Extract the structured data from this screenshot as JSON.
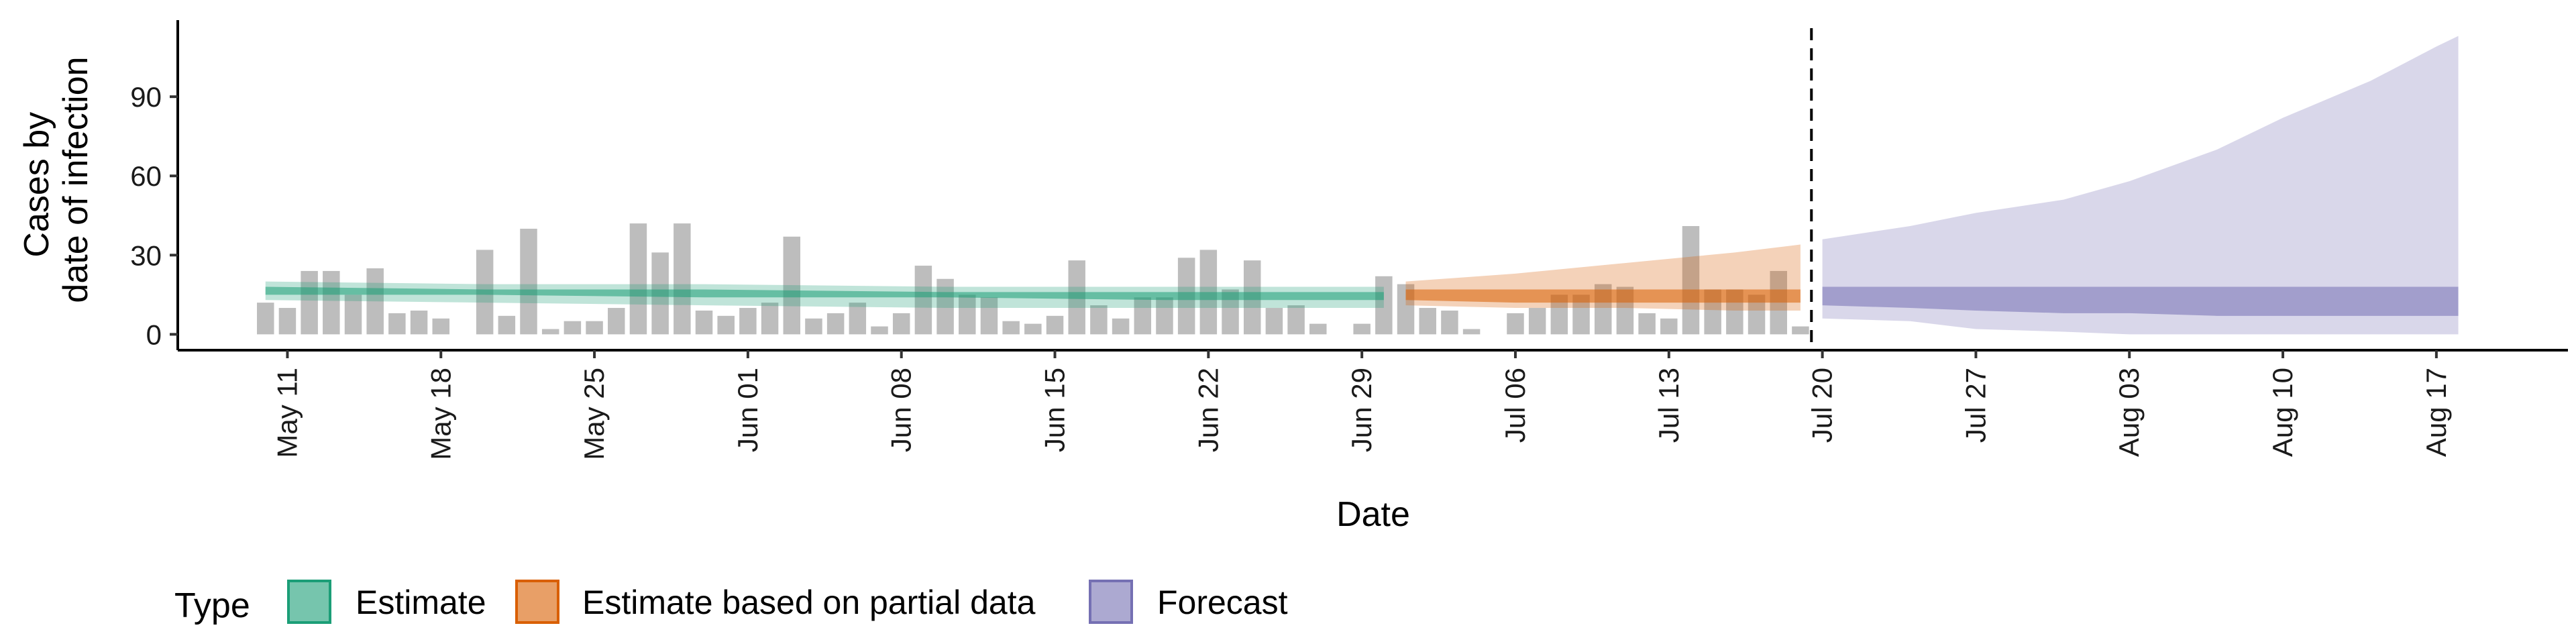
{
  "chart_data": {
    "type": "bar",
    "xlabel": "Date",
    "ylabel": [
      "Cases by",
      "date of infection"
    ],
    "ylim": [
      -6,
      119
    ],
    "xlim": [
      "2020-05-06",
      "2020-08-23"
    ],
    "y_ticks": [
      0,
      30,
      60,
      90
    ],
    "x_ticks": [
      {
        "date": "2020-05-11",
        "label": "May 11"
      },
      {
        "date": "2020-05-18",
        "label": "May 18"
      },
      {
        "date": "2020-05-25",
        "label": "May 25"
      },
      {
        "date": "2020-06-01",
        "label": "Jun 01"
      },
      {
        "date": "2020-06-08",
        "label": "Jun 08"
      },
      {
        "date": "2020-06-15",
        "label": "Jun 15"
      },
      {
        "date": "2020-06-22",
        "label": "Jun 22"
      },
      {
        "date": "2020-06-29",
        "label": "Jun 29"
      },
      {
        "date": "2020-07-06",
        "label": "Jul 06"
      },
      {
        "date": "2020-07-13",
        "label": "Jul 13"
      },
      {
        "date": "2020-07-20",
        "label": "Jul 20"
      },
      {
        "date": "2020-07-27",
        "label": "Jul 27"
      },
      {
        "date": "2020-08-03",
        "label": "Aug 03"
      },
      {
        "date": "2020-08-10",
        "label": "Aug 10"
      },
      {
        "date": "2020-08-17",
        "label": "Aug 17"
      }
    ],
    "grid": false,
    "legend_position": "bottom",
    "legend": {
      "title": "Type",
      "items": [
        {
          "label": "Estimate",
          "fill": "#1b9e77",
          "stroke": "#1b9e77"
        },
        {
          "label": "Estimate based on partial data",
          "fill": "#d95f02",
          "stroke": "#d95f02"
        },
        {
          "label": "Forecast",
          "fill": "#7570b3",
          "stroke": "#7570b3"
        }
      ]
    },
    "bar_color": "#bdbdbd",
    "reported_cases": {
      "dates": [
        "2020-05-10",
        "2020-05-11",
        "2020-05-12",
        "2020-05-13",
        "2020-05-14",
        "2020-05-15",
        "2020-05-16",
        "2020-05-17",
        "2020-05-18",
        "2020-05-19",
        "2020-05-20",
        "2020-05-21",
        "2020-05-22",
        "2020-05-23",
        "2020-05-24",
        "2020-05-25",
        "2020-05-26",
        "2020-05-27",
        "2020-05-28",
        "2020-05-29",
        "2020-05-30",
        "2020-05-31",
        "2020-06-01",
        "2020-06-02",
        "2020-06-03",
        "2020-06-04",
        "2020-06-05",
        "2020-06-06",
        "2020-06-07",
        "2020-06-08",
        "2020-06-09",
        "2020-06-10",
        "2020-06-11",
        "2020-06-12",
        "2020-06-13",
        "2020-06-14",
        "2020-06-15",
        "2020-06-16",
        "2020-06-17",
        "2020-06-18",
        "2020-06-19",
        "2020-06-20",
        "2020-06-21",
        "2020-06-22",
        "2020-06-23",
        "2020-06-24",
        "2020-06-25",
        "2020-06-26",
        "2020-06-27",
        "2020-06-28",
        "2020-06-29",
        "2020-06-30",
        "2020-07-01",
        "2020-07-02",
        "2020-07-03",
        "2020-07-04",
        "2020-07-05",
        "2020-07-06",
        "2020-07-07",
        "2020-07-08",
        "2020-07-09",
        "2020-07-10",
        "2020-07-11",
        "2020-07-12",
        "2020-07-13",
        "2020-07-14",
        "2020-07-15",
        "2020-07-16",
        "2020-07-17",
        "2020-07-18",
        "2020-07-19"
      ],
      "values": [
        12,
        10,
        24,
        24,
        15,
        25,
        8,
        9,
        6,
        0,
        32,
        7,
        40,
        2,
        5,
        5,
        10,
        42,
        31,
        42,
        9,
        7,
        10,
        12,
        37,
        6,
        8,
        12,
        3,
        8,
        26,
        21,
        15,
        14,
        5,
        4,
        7,
        28,
        11,
        6,
        14,
        14,
        29,
        32,
        17,
        28,
        10,
        11,
        4,
        0,
        4,
        22,
        19,
        10,
        9,
        2,
        0,
        8,
        10,
        15,
        15,
        19,
        18,
        8,
        6,
        41,
        17,
        17,
        15,
        24,
        3
      ]
    },
    "estimate": {
      "dates": [
        "2020-05-10",
        "2020-05-20",
        "2020-05-30",
        "2020-06-10",
        "2020-06-20",
        "2020-06-30"
      ],
      "outer_lower": [
        13,
        12,
        11,
        10,
        10,
        10
      ],
      "outer_upper": [
        20,
        19,
        19,
        18,
        18,
        18
      ],
      "inner_lower": [
        15,
        15,
        14,
        14,
        13,
        13
      ],
      "inner_upper": [
        18,
        17,
        17,
        16,
        16,
        16
      ]
    },
    "partial_estimate": {
      "dates": [
        "2020-07-01",
        "2020-07-06",
        "2020-07-11",
        "2020-07-16",
        "2020-07-19"
      ],
      "outer_lower": [
        11,
        10,
        10,
        9,
        9
      ],
      "outer_upper": [
        20,
        23,
        27,
        31,
        34
      ],
      "inner_lower": [
        13,
        12,
        12,
        12,
        12
      ],
      "inner_upper": [
        17,
        17,
        17,
        17,
        17
      ]
    },
    "forecast": {
      "dates": [
        "2020-07-20",
        "2020-07-24",
        "2020-07-27",
        "2020-07-31",
        "2020-08-03",
        "2020-08-07",
        "2020-08-10",
        "2020-08-14",
        "2020-08-17",
        "2020-08-18"
      ],
      "outer_lower": [
        6,
        5,
        2,
        1,
        0,
        0,
        0,
        0,
        0,
        0
      ],
      "outer_upper": [
        36,
        41,
        46,
        51,
        58,
        70,
        82,
        96,
        109,
        113
      ],
      "inner_lower": [
        11,
        10,
        9,
        8,
        8,
        7,
        7,
        7,
        7,
        7
      ],
      "inner_upper": [
        18,
        18,
        18,
        18,
        18,
        18,
        18,
        18,
        18,
        18
      ]
    },
    "vline_date": "2020-07-19"
  }
}
